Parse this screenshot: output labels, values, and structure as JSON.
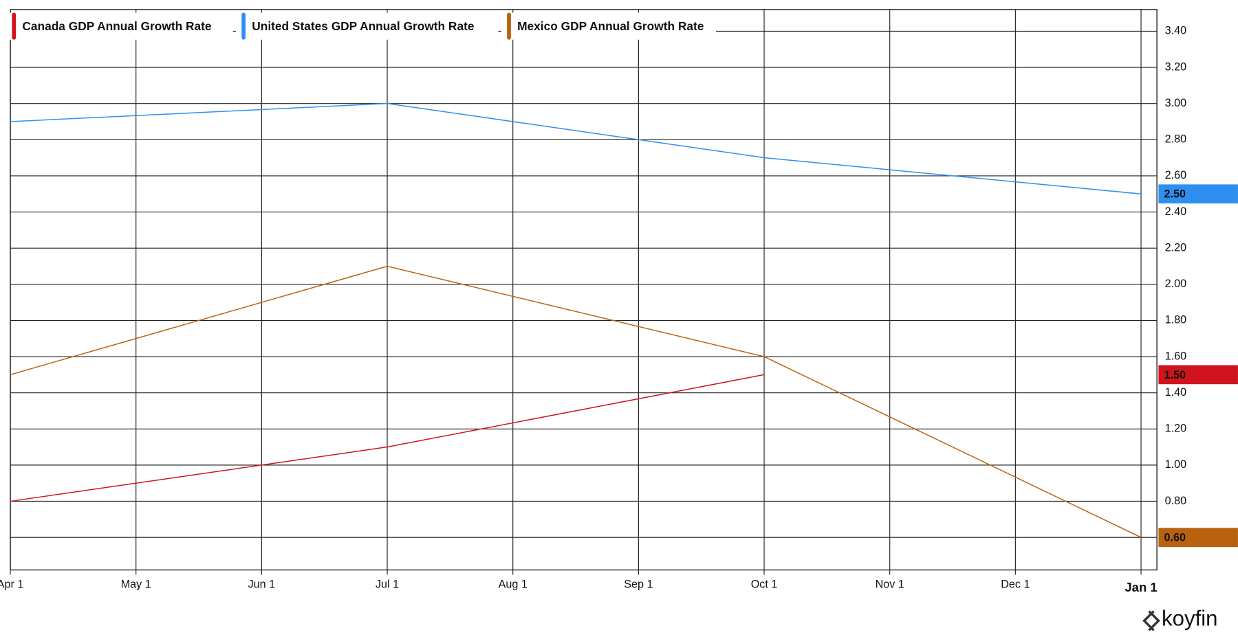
{
  "chart_data": {
    "type": "line",
    "x": [
      "Apr 1",
      "Jul 1",
      "Oct 1",
      "Jan 1"
    ],
    "xticks": [
      "Apr 1",
      "May 1",
      "Jun 1",
      "Jul 1",
      "Aug 1",
      "Sep 1",
      "Oct 1",
      "Nov 1",
      "Dec 1",
      "Jan 1"
    ],
    "series": [
      {
        "name": "Canada GDP Annual Growth Rate",
        "color": "#d0141e",
        "values": [
          0.8,
          1.1,
          1.5,
          null
        ],
        "value_labels": [
          null,
          null,
          "1.50",
          null
        ]
      },
      {
        "name": "United States GDP Annual Growth Rate",
        "color": "#2f8ff0",
        "values": [
          2.9,
          3.0,
          2.7,
          2.5
        ],
        "value_labels": [
          null,
          null,
          null,
          "2.50"
        ]
      },
      {
        "name": "Mexico GDP Annual Growth Rate",
        "color": "#b8620f",
        "values": [
          1.5,
          2.1,
          1.6,
          0.6
        ],
        "value_labels": [
          null,
          null,
          null,
          "0.60"
        ]
      }
    ],
    "ylim": [
      0.42,
      3.52
    ],
    "yticks": [
      {
        "value": 0.6,
        "label": "0.60"
      },
      {
        "value": 0.8,
        "label": "0.80"
      },
      {
        "value": 1.0,
        "label": "1.00"
      },
      {
        "value": 1.2,
        "label": "1.20"
      },
      {
        "value": 1.4,
        "label": "1.40"
      },
      {
        "value": 1.6,
        "label": "1.60"
      },
      {
        "value": 1.8,
        "label": "1.80"
      },
      {
        "value": 2.0,
        "label": "2.00"
      },
      {
        "value": 2.2,
        "label": "2.20"
      },
      {
        "value": 2.4,
        "label": "2.40"
      },
      {
        "value": 2.6,
        "label": "2.60"
      },
      {
        "value": 2.8,
        "label": "2.80"
      },
      {
        "value": 3.0,
        "label": "3.00"
      },
      {
        "value": 3.2,
        "label": "3.20"
      },
      {
        "value": 3.4,
        "label": "3.40"
      }
    ],
    "grid": true,
    "legend": "top-left",
    "brand": "koyfin"
  }
}
